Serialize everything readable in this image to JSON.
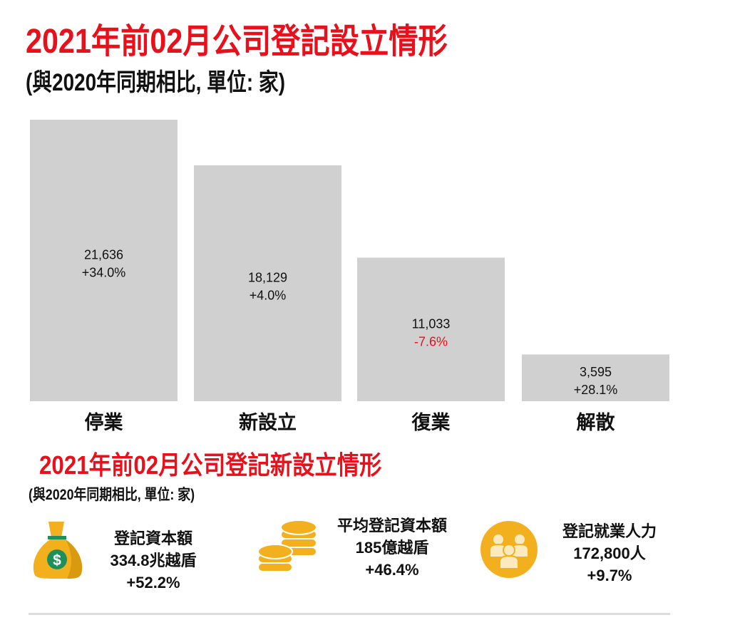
{
  "title": "2021年前02月公司登記設立情形",
  "subtitle": "(與2020年同期相比, 單位: 家)",
  "chart_data": {
    "type": "bar",
    "title": "2021年前02月公司登記設立情形",
    "subtitle": "(與2020年同期相比, 單位: 家)",
    "categories": [
      "停業",
      "新設立",
      "復業",
      "解散"
    ],
    "values": [
      21636,
      18129,
      11033,
      3595
    ],
    "value_labels": [
      "21,636",
      "18,129",
      "11,033",
      "3,595"
    ],
    "change_labels": [
      "+34.0%",
      "+4.0%",
      "-7.6%",
      "+28.1%"
    ],
    "ylim": [
      0,
      21636
    ],
    "grid": false,
    "colors": {
      "bar": "#d0d0d0",
      "negative": "#e8101a",
      "positive": "#111111"
    }
  },
  "section2": {
    "title": "2021年前02月公司登記新設立情形",
    "subtitle": "(與2020年同期相比, 單位: 家)",
    "stats": [
      {
        "icon": "money-bag-icon",
        "label": "登記資本額",
        "value": "334.8兆越盾",
        "change": "+52.2%"
      },
      {
        "icon": "coins-icon",
        "label": "平均登記資本額",
        "value": "185億越盾",
        "change": "+46.4%"
      },
      {
        "icon": "people-icon",
        "label": "登記就業人力",
        "value": "172,800人",
        "change": "+9.7%"
      }
    ],
    "icon_color": "#f2b01e"
  }
}
